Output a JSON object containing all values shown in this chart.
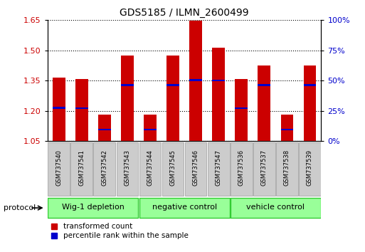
{
  "title": "GDS5185 / ILMN_2600499",
  "samples": [
    "GSM737540",
    "GSM737541",
    "GSM737542",
    "GSM737543",
    "GSM737544",
    "GSM737545",
    "GSM737546",
    "GSM737547",
    "GSM737536",
    "GSM737537",
    "GSM737538",
    "GSM737539"
  ],
  "transformed_counts": [
    1.365,
    1.358,
    1.183,
    1.475,
    1.183,
    1.475,
    1.648,
    1.515,
    1.358,
    1.425,
    1.182,
    1.425
  ],
  "percentile_ranks_val": [
    1.215,
    1.213,
    1.108,
    1.328,
    1.108,
    1.328,
    1.353,
    1.352,
    1.213,
    1.328,
    1.108,
    1.328
  ],
  "groups": [
    {
      "label": "Wig-1 depletion",
      "start": 0,
      "end": 3
    },
    {
      "label": "negative control",
      "start": 4,
      "end": 7
    },
    {
      "label": "vehicle control",
      "start": 8,
      "end": 11
    }
  ],
  "ylim_left": [
    1.05,
    1.65
  ],
  "yticks_left": [
    1.05,
    1.2,
    1.35,
    1.5,
    1.65
  ],
  "ylim_right": [
    0,
    100
  ],
  "yticks_right": [
    0,
    25,
    50,
    75,
    100
  ],
  "bar_color": "#cc0000",
  "percentile_color": "#0000cc",
  "bar_bottom": 1.05,
  "bar_width": 0.55,
  "group_bg_color": "#99ff99",
  "group_border_color": "#33cc33",
  "tick_label_color_left": "#cc0000",
  "tick_label_color_right": "#0000cc",
  "legend_red_label": "transformed count",
  "legend_blue_label": "percentile rank within the sample",
  "protocol_label": "protocol",
  "background_color": "#ffffff",
  "plot_bg_color": "#ffffff",
  "sample_box_color": "#cccccc",
  "sample_box_edge": "#999999"
}
